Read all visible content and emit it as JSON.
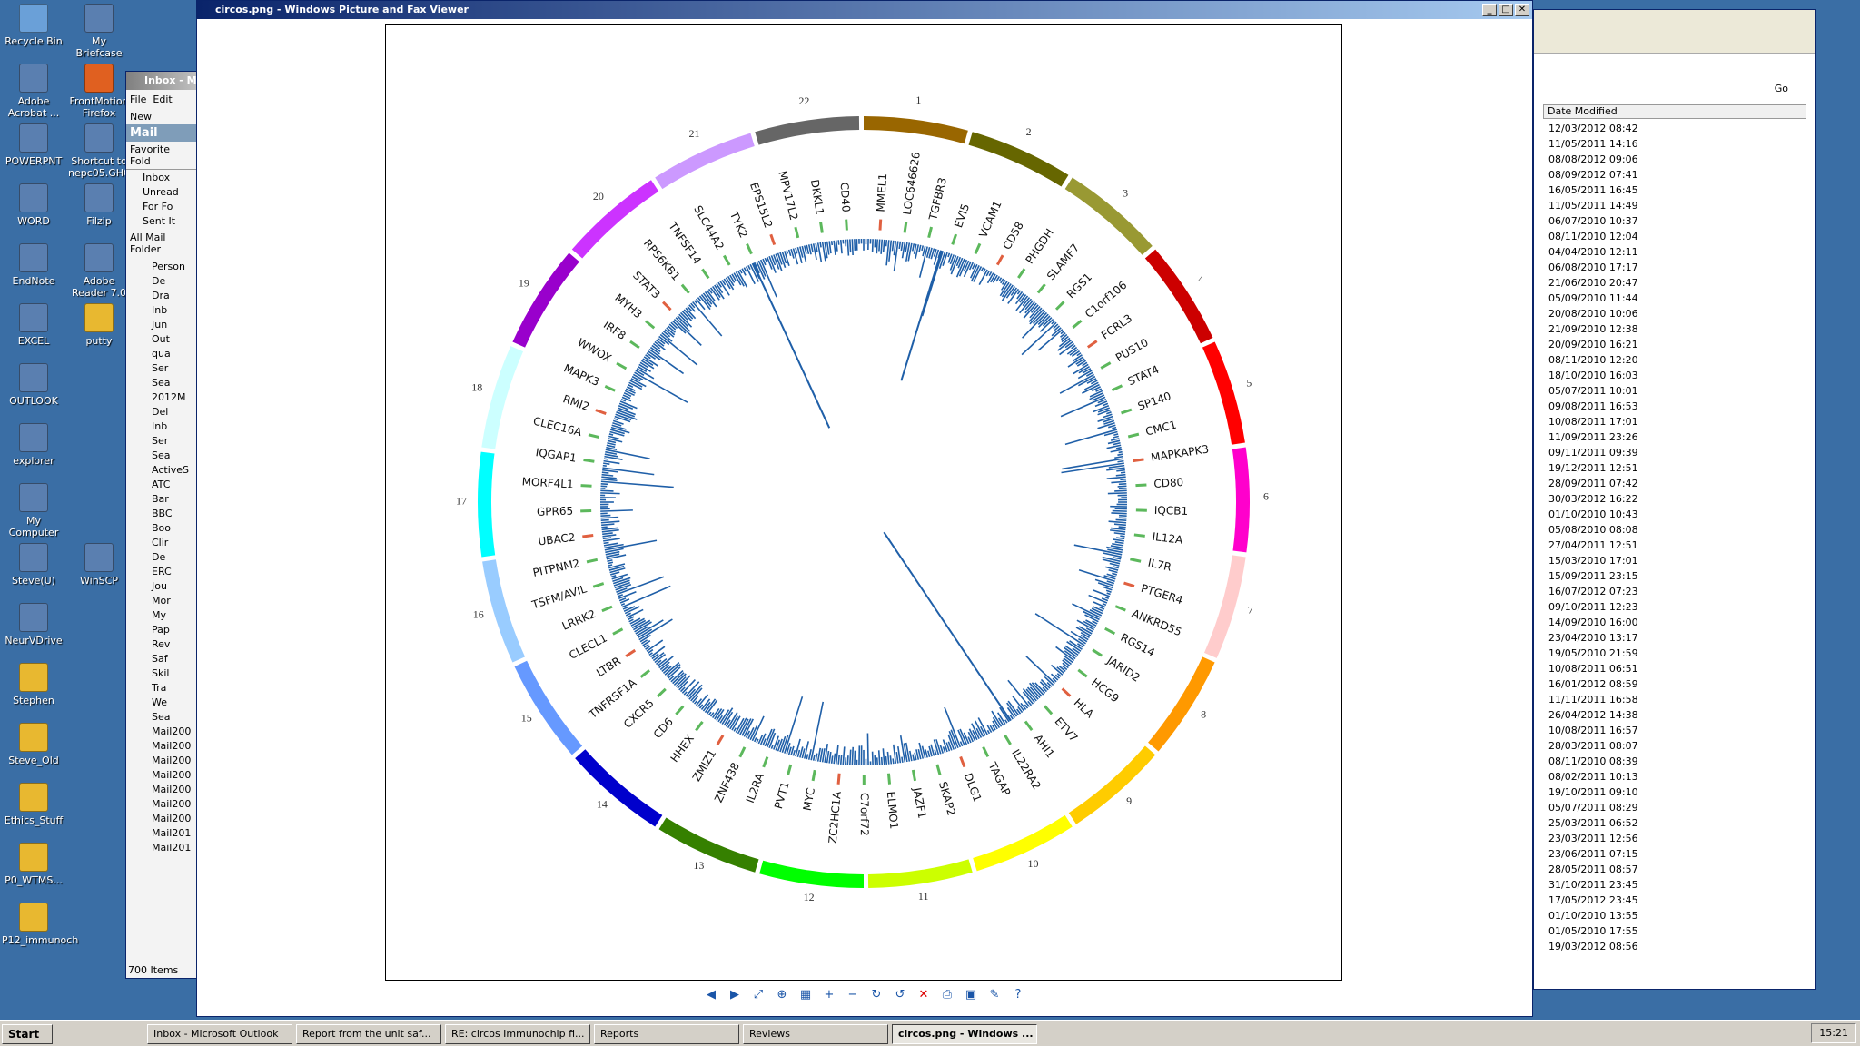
{
  "desktop_icons": [
    {
      "label": "Recycle Bin",
      "icon": "recycle-bin-icon",
      "col": 0,
      "row": 0
    },
    {
      "label": "My Briefcase",
      "icon": "briefcase-icon",
      "col": 1,
      "row": 0
    },
    {
      "label": "Adobe Acrobat ...",
      "icon": "acrobat-icon",
      "col": 0,
      "row": 1
    },
    {
      "label": "FrontMotion Firefox",
      "icon": "firefox-icon",
      "col": 1,
      "row": 1
    },
    {
      "label": "POWERPNT",
      "icon": "powerpoint-icon",
      "col": 0,
      "row": 2
    },
    {
      "label": "Shortcut to nepc05.GH0",
      "icon": "shortcut-icon",
      "col": 1,
      "row": 2
    },
    {
      "label": "WORD",
      "icon": "word-icon",
      "col": 0,
      "row": 3
    },
    {
      "label": "Filzip",
      "icon": "filzip-icon",
      "col": 1,
      "row": 3
    },
    {
      "label": "EndNote",
      "icon": "endnote-icon",
      "col": 0,
      "row": 4
    },
    {
      "label": "Adobe Reader 7.0",
      "icon": "adobe-reader-icon",
      "col": 1,
      "row": 4
    },
    {
      "label": "EXCEL",
      "icon": "excel-icon",
      "col": 0,
      "row": 5
    },
    {
      "label": "putty",
      "icon": "folder-icon",
      "col": 1,
      "row": 5
    },
    {
      "label": "OUTLOOK",
      "icon": "outlook-icon",
      "col": 0,
      "row": 6
    },
    {
      "label": "explorer",
      "icon": "internet-explorer-icon",
      "col": 0,
      "row": 7
    },
    {
      "label": "My Computer",
      "icon": "my-computer-icon",
      "col": 0,
      "row": 8
    },
    {
      "label": "Steve(U)",
      "icon": "network-drive-icon",
      "col": 0,
      "row": 9
    },
    {
      "label": "WinSCP",
      "icon": "winscp-icon",
      "col": 1,
      "row": 9
    },
    {
      "label": "NeurVDrive",
      "icon": "network-drive-icon",
      "col": 0,
      "row": 10
    },
    {
      "label": "Stephen",
      "icon": "folder-icon",
      "col": 0,
      "row": 11
    },
    {
      "label": "Steve_Old",
      "icon": "folder-icon",
      "col": 0,
      "row": 12
    },
    {
      "label": "Ethics_Stuff",
      "icon": "folder-icon",
      "col": 0,
      "row": 13
    },
    {
      "label": "P0_WTMS...",
      "icon": "folder-icon",
      "col": 0,
      "row": 14
    },
    {
      "label": "P12_immunoch",
      "icon": "folder-icon",
      "col": 0,
      "row": 15
    }
  ],
  "viewer": {
    "title": "circos.png - Windows Picture and Fax Viewer",
    "toolbar": [
      "prev-icon",
      "next-icon",
      "best-fit-icon",
      "actual-size-icon",
      "slideshow-icon",
      "zoom-in-icon",
      "zoom-out-icon",
      "rotate-cw-icon",
      "rotate-ccw-icon",
      "delete-icon",
      "print-icon",
      "save-icon",
      "edit-icon",
      "help-icon"
    ]
  },
  "circos": {
    "chromosomes": [
      {
        "label": "1",
        "color": "#996600"
      },
      {
        "label": "2",
        "color": "#666600"
      },
      {
        "label": "3",
        "color": "#999933"
      },
      {
        "label": "4",
        "color": "#cc0000"
      },
      {
        "label": "5",
        "color": "#ff0000"
      },
      {
        "label": "6",
        "color": "#ff00cc"
      },
      {
        "label": "7",
        "color": "#ffcccc"
      },
      {
        "label": "8",
        "color": "#ff9900"
      },
      {
        "label": "9",
        "color": "#ffcc00"
      },
      {
        "label": "10",
        "color": "#ffff00"
      },
      {
        "label": "11",
        "color": "#ccff00"
      },
      {
        "label": "12",
        "color": "#00ff00"
      },
      {
        "label": "13",
        "color": "#358000"
      },
      {
        "label": "14",
        "color": "#0000cc"
      },
      {
        "label": "15",
        "color": "#6699ff"
      },
      {
        "label": "16",
        "color": "#99ccff"
      },
      {
        "label": "17",
        "color": "#00ffff"
      },
      {
        "label": "18",
        "color": "#ccffff"
      },
      {
        "label": "19",
        "color": "#9900cc"
      },
      {
        "label": "20",
        "color": "#cc33ff"
      },
      {
        "label": "21",
        "color": "#cc99ff"
      },
      {
        "label": "22",
        "color": "#666666"
      }
    ],
    "genes": [
      "MMEL1",
      "LOC646626",
      "TGFBR3",
      "EVI5",
      "VCAM1",
      "CD58",
      "PHGDH",
      "SLAMF7",
      "RGS1",
      "C1orf106",
      "FCRL3",
      "PUS10",
      "STAT4",
      "SP140",
      "CMC1",
      "MAPKAPK3",
      "CD80",
      "IQCB1",
      "IL12A",
      "IL7R",
      "PTGER4",
      "ANKRD55",
      "RGS14",
      "JARID2",
      "HCG9",
      "HLA",
      "ETV7",
      "AHI1",
      "IL22RA2",
      "TAGAP",
      "DLG1",
      "SKAP2",
      "JAZF1",
      "ELMO1",
      "C7orf72",
      "ZC2HC1A",
      "MYC",
      "PVT1",
      "IL2RA",
      "ZNF438",
      "ZMIZ1",
      "HHEX",
      "CD6",
      "CXCR5",
      "TNFRSF1A",
      "LTBR",
      "CLECL1",
      "LRRK2",
      "TSFM/AVIL",
      "PITPNM2",
      "UBAC2",
      "GPR65",
      "MORF4L1",
      "IQGAP1",
      "CLEC16A",
      "RMI2",
      "MAPK3",
      "WWOX",
      "IRF8",
      "MYH3",
      "STAT3",
      "RPS6KB1",
      "TNFSF14",
      "SLC44A2",
      "TYK2",
      "EPS15L2",
      "MPV17L2",
      "DKKL1",
      "CD40"
    ]
  },
  "outlook": {
    "title": "Inbox - M",
    "menu": [
      "File",
      "Edit"
    ],
    "new_label": "New",
    "mail_label": "Mail",
    "favorite": "Favorite Fold",
    "folders": [
      "Inbox",
      "Unread",
      "For Fo",
      "Sent It"
    ],
    "all": "All Mail Folder",
    "items": [
      "Person",
      "De",
      "Dra",
      "Inb",
      "Jun",
      "Out",
      "qua",
      "Ser",
      "Sea",
      "2012M",
      "Del",
      "Inb",
      "Ser",
      "Sea",
      "ActiveS",
      "ATC",
      "Bar",
      "BBC",
      "Boo",
      "Clir",
      "De",
      "ERC",
      "Jou",
      "Mor",
      "My",
      "Pap",
      "Rev",
      "Saf",
      "Skil",
      "Tra",
      "We",
      "Sea",
      "Mail200",
      "Mail200",
      "Mail200",
      "Mail200",
      "Mail200",
      "Mail200",
      "Mail200",
      "Mail201",
      "Mail201"
    ],
    "status": "700 Items"
  },
  "explorer": {
    "col_header": "Date Modified",
    "go": "Go",
    "dates": [
      "12/03/2012 08:42",
      "11/05/2011 14:16",
      "08/08/2012 09:06",
      "08/09/2012 07:41",
      "16/05/2011 16:45",
      "11/05/2011 14:49",
      "06/07/2010 10:37",
      "08/11/2010 12:04",
      "04/04/2010 12:11",
      "06/08/2010 17:17",
      "21/06/2010 20:47",
      "05/09/2010 11:44",
      "20/08/2010 10:06",
      "21/09/2010 12:38",
      "20/09/2010 16:21",
      "08/11/2010 12:20",
      "18/10/2010 16:03",
      "05/07/2011 10:01",
      "09/08/2011 16:53",
      "10/08/2011 17:01",
      "11/09/2011 23:26",
      "09/11/2011 09:39",
      "19/12/2011 12:51",
      "28/09/2011 07:42",
      "30/03/2012 16:22",
      "01/10/2010 10:43",
      "05/08/2010 08:08",
      "27/04/2011 12:51",
      "15/03/2010 17:01",
      "15/09/2011 23:15",
      "16/07/2012 07:23",
      "09/10/2011 12:23",
      "14/09/2010 16:00",
      "23/04/2010 13:17",
      "19/05/2010 21:59",
      "10/08/2011 06:51",
      "16/01/2012 08:59",
      "11/11/2011 16:58",
      "26/04/2012 14:38",
      "10/08/2011 16:57",
      "28/03/2011 08:07",
      "08/11/2010 08:39",
      "08/02/2011 10:13",
      "19/10/2011 09:10",
      "05/07/2011 08:29",
      "25/03/2011 06:52",
      "23/03/2011 12:56",
      "23/06/2011 07:15",
      "28/05/2011 08:57",
      "31/10/2011 23:45",
      "17/05/2012 23:45",
      "01/10/2010 13:55",
      "01/05/2010 17:55",
      "19/03/2012 08:56"
    ]
  },
  "taskbar": {
    "start": "Start",
    "tasks": [
      "Inbox - Microsoft Outlook",
      "Report from the unit saf...",
      "RE: circos Immunochip fi...",
      "Reports",
      "Reviews",
      "circos.png - Windows ..."
    ],
    "clock": "15:21"
  }
}
